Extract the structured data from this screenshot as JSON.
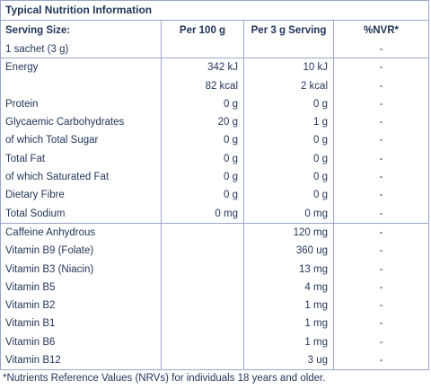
{
  "title": "Typical Nutrition Information",
  "headers": {
    "label": "Serving Size:",
    "per100": "Per 100 g",
    "perServing": "Per 3 g Serving",
    "nvr": "%NVR*"
  },
  "serving_note": "1 sachet (3 g)",
  "serving_note_nvr": "-",
  "rows_group1": [
    {
      "label": "Energy",
      "per100": "342 kJ",
      "serving": "10 kJ",
      "nvr": "-"
    },
    {
      "label": "",
      "per100": "82 kcal",
      "serving": "2 kcal",
      "nvr": "-"
    },
    {
      "label": "Protein",
      "per100": "0 g",
      "serving": "0 g",
      "nvr": "-"
    },
    {
      "label": "Glycaemic Carbohydrates",
      "per100": "20 g",
      "serving": "1 g",
      "nvr": "-"
    },
    {
      "label": "of which Total Sugar",
      "per100": "0 g",
      "serving": "0 g",
      "nvr": "-"
    },
    {
      "label": "Total Fat",
      "per100": "0 g",
      "serving": "0 g",
      "nvr": "-"
    },
    {
      "label": "of which Saturated Fat",
      "per100": "0 g",
      "serving": "0 g",
      "nvr": "-"
    },
    {
      "label": "Dietary Fibre",
      "per100": "0 g",
      "serving": "0 g",
      "nvr": "-"
    },
    {
      "label": "Total Sodium",
      "per100": "0 mg",
      "serving": "0 mg",
      "nvr": "-"
    }
  ],
  "rows_group2": [
    {
      "label": "Caffeine Anhydrous",
      "per100": "",
      "serving": "120 mg",
      "nvr": "-"
    },
    {
      "label": "Vitamin B9 (Folate)",
      "per100": "",
      "serving": "360 ug",
      "nvr": "-"
    },
    {
      "label": "Vitamin B3 (Niacin)",
      "per100": "",
      "serving": "13 mg",
      "nvr": "-"
    },
    {
      "label": "Vitamin B5",
      "per100": "",
      "serving": "4 mg",
      "nvr": "-"
    },
    {
      "label": "Vitamin B2",
      "per100": "",
      "serving": "1 mg",
      "nvr": "-"
    },
    {
      "label": "Vitamin B1",
      "per100": "",
      "serving": "1 mg",
      "nvr": "-"
    },
    {
      "label": "Vitamin B6",
      "per100": "",
      "serving": "1 mg",
      "nvr": "-"
    },
    {
      "label": "Vitamin B12",
      "per100": "",
      "serving": "3 ug",
      "nvr": "-"
    }
  ],
  "footnote": "*Nutrients Reference Values (NRVs) for individuals 18 years and older."
}
